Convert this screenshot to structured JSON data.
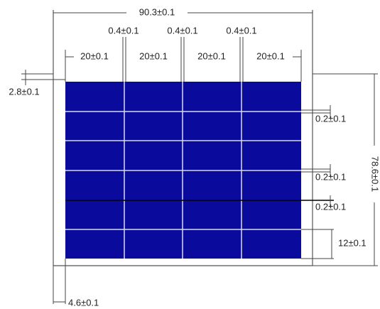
{
  "dimensions": {
    "overall_width": "90.3±0.1",
    "gap_labels": [
      "0.4±0.1",
      "0.4±0.1",
      "0.4±0.1"
    ],
    "cell_width_labels": [
      "20±0.1",
      "20±0.1",
      "20±0.1",
      "20±0.1"
    ],
    "top_margin": "2.8±0.1",
    "row_gap_labels": [
      "0.2±0.1",
      "0.2±0.1",
      "0.2±0.1"
    ],
    "cell_height": "12±0.1",
    "overall_height": "78.6±0.1",
    "left_margin": "4.6±0.1"
  }
}
